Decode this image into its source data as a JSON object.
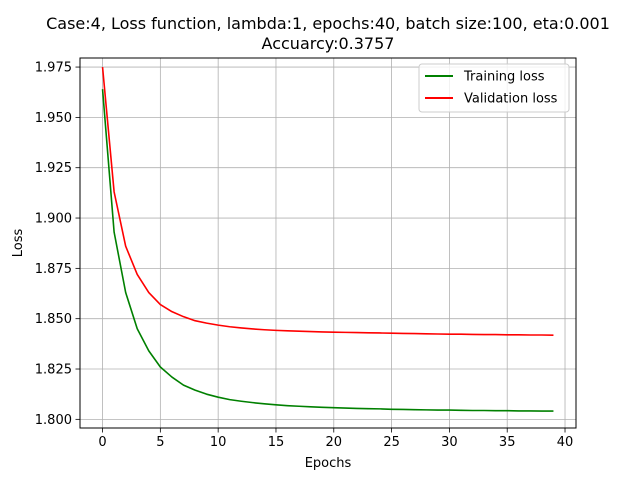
{
  "chart_data": {
    "type": "line",
    "title_line1": "Case:4, Loss function, lambda:1, epochs:40, batch size:100, eta:0.001",
    "title_line2": "Accuarcy:0.3757",
    "xlabel": "Epochs",
    "ylabel": "Loss",
    "xlim": [
      -1.95,
      40.95
    ],
    "ylim": [
      1.7957,
      1.9795
    ],
    "xticks": [
      0,
      5,
      10,
      15,
      20,
      25,
      30,
      35,
      40
    ],
    "yticks": [
      1.8,
      1.825,
      1.85,
      1.875,
      1.9,
      1.925,
      1.95,
      1.975
    ],
    "xtick_labels": [
      "0",
      "5",
      "10",
      "15",
      "20",
      "25",
      "30",
      "35",
      "40"
    ],
    "ytick_labels": [
      "1.800",
      "1.825",
      "1.850",
      "1.875",
      "1.900",
      "1.925",
      "1.950",
      "1.975"
    ],
    "grid": true,
    "legend_position": "top-right",
    "x": [
      0,
      1,
      2,
      3,
      4,
      5,
      6,
      7,
      8,
      9,
      10,
      11,
      12,
      13,
      14,
      15,
      16,
      17,
      18,
      19,
      20,
      21,
      22,
      23,
      24,
      25,
      26,
      27,
      28,
      29,
      30,
      31,
      32,
      33,
      34,
      35,
      36,
      37,
      38,
      39
    ],
    "series": [
      {
        "name": "Training loss",
        "color": "#008000",
        "values": [
          1.964,
          1.893,
          1.863,
          1.845,
          1.834,
          1.826,
          1.821,
          1.817,
          1.8145,
          1.8125,
          1.811,
          1.8098,
          1.809,
          1.8083,
          1.8077,
          1.8072,
          1.8068,
          1.8065,
          1.8062,
          1.806,
          1.8058,
          1.8056,
          1.8054,
          1.8053,
          1.8052,
          1.805,
          1.8049,
          1.8048,
          1.8047,
          1.8046,
          1.8046,
          1.8045,
          1.8044,
          1.8044,
          1.8043,
          1.8043,
          1.8042,
          1.8042,
          1.8041,
          1.8041
        ]
      },
      {
        "name": "Validation loss",
        "color": "#ff0000",
        "values": [
          1.975,
          1.913,
          1.886,
          1.872,
          1.863,
          1.857,
          1.8535,
          1.851,
          1.849,
          1.8478,
          1.8468,
          1.846,
          1.8454,
          1.8449,
          1.8445,
          1.8442,
          1.844,
          1.8438,
          1.8436,
          1.8434,
          1.8433,
          1.8432,
          1.8431,
          1.843,
          1.8429,
          1.8428,
          1.8427,
          1.8426,
          1.8425,
          1.8424,
          1.8423,
          1.8423,
          1.8422,
          1.8421,
          1.8421,
          1.842,
          1.842,
          1.8419,
          1.8419,
          1.8418
        ]
      }
    ]
  }
}
